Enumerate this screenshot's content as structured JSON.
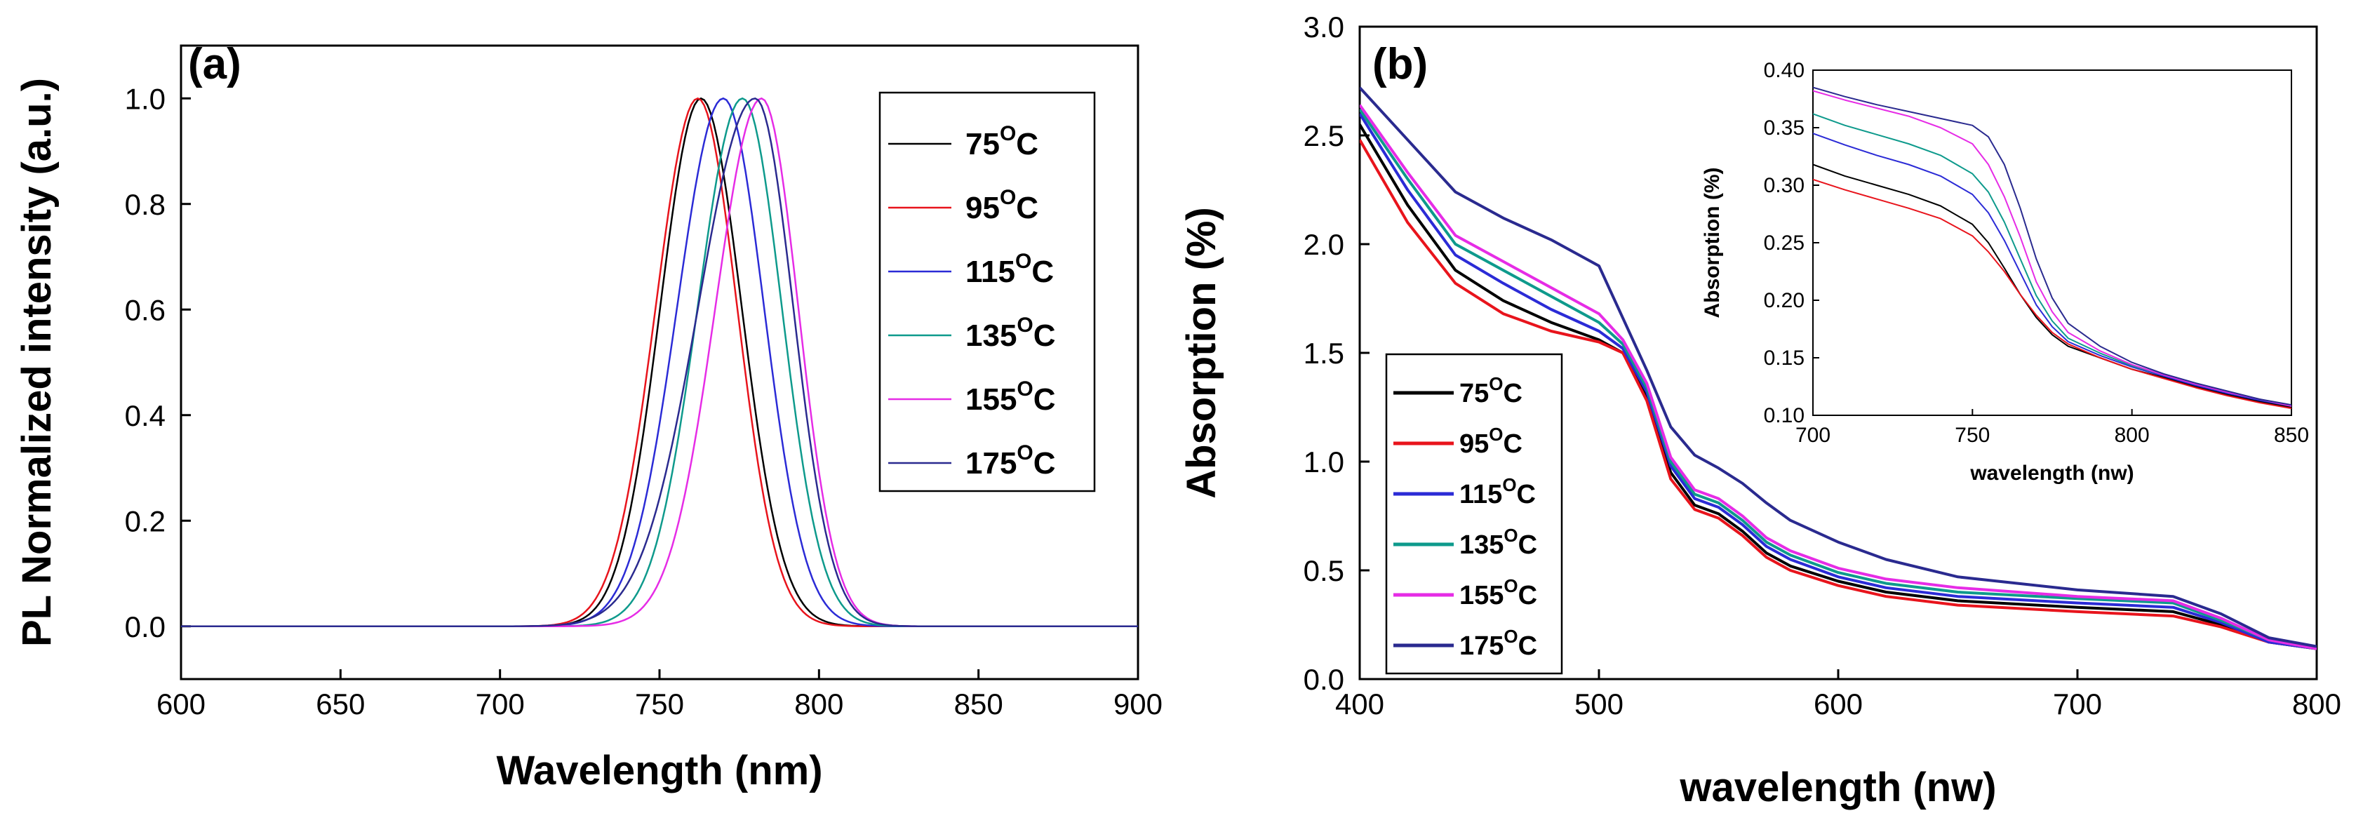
{
  "colors": {
    "75": "#000000",
    "95": "#e8141c",
    "115": "#2b2bd6",
    "135": "#0e9a8c",
    "155": "#e62ce6",
    "175": "#2a2a8f"
  },
  "chart_data": [
    {
      "type": "line",
      "panel_label": "(a)",
      "xlabel": "Wavelength (nm)",
      "ylabel": "PL Normalized intensity (a.u.)",
      "xlim": [
        600,
        900
      ],
      "ylim": [
        -0.1,
        1.1
      ],
      "xticks": [
        600,
        650,
        700,
        750,
        800,
        850,
        900
      ],
      "yticks": [
        0.0,
        0.2,
        0.4,
        0.6,
        0.8,
        1.0
      ],
      "tick_format": "0.0",
      "grid": false,
      "legend_placement": "top-right",
      "series": [
        {
          "name": "75",
          "unit": "C",
          "color_key": "75",
          "peak": 763,
          "fwhm_left": 30,
          "fwhm_right": 30
        },
        {
          "name": "95",
          "unit": "C",
          "color_key": "95",
          "peak": 762,
          "fwhm_left": 31,
          "fwhm_right": 29
        },
        {
          "name": "115",
          "unit": "C",
          "color_key": "115",
          "peak": 770,
          "fwhm_left": 34,
          "fwhm_right": 30
        },
        {
          "name": "135",
          "unit": "C",
          "color_key": "135",
          "peak": 776,
          "fwhm_left": 33,
          "fwhm_right": 29
        },
        {
          "name": "155",
          "unit": "C",
          "color_key": "155",
          "peak": 782,
          "fwhm_left": 34,
          "fwhm_right": 27
        },
        {
          "name": "175",
          "unit": "C",
          "color_key": "175",
          "peak": 780,
          "fwhm_left": 42,
          "fwhm_right": 28
        }
      ]
    },
    {
      "type": "line",
      "panel_label": "(b)",
      "xlabel": "wavelength (nw)",
      "ylabel": "Absorption (%)",
      "xlim": [
        400,
        800
      ],
      "ylim": [
        0.0,
        3.0
      ],
      "xticks": [
        400,
        500,
        600,
        700,
        800
      ],
      "yticks": [
        0.0,
        0.5,
        1.0,
        1.5,
        2.0,
        2.5,
        3.0
      ],
      "tick_format": "0.0",
      "grid": false,
      "legend_placement": "bottom-left",
      "x": [
        400,
        420,
        440,
        460,
        480,
        500,
        510,
        520,
        530,
        540,
        550,
        560,
        570,
        580,
        600,
        620,
        650,
        700,
        740,
        760,
        780,
        800
      ],
      "series": [
        {
          "name": "75",
          "unit": "C",
          "color_key": "75",
          "values": [
            2.55,
            2.18,
            1.88,
            1.74,
            1.64,
            1.56,
            1.5,
            1.3,
            0.95,
            0.8,
            0.76,
            0.68,
            0.58,
            0.52,
            0.45,
            0.4,
            0.36,
            0.33,
            0.31,
            0.25,
            0.17,
            0.14
          ]
        },
        {
          "name": "95",
          "unit": "C",
          "color_key": "95",
          "values": [
            2.48,
            2.1,
            1.82,
            1.68,
            1.6,
            1.55,
            1.5,
            1.28,
            0.92,
            0.78,
            0.74,
            0.66,
            0.56,
            0.5,
            0.43,
            0.38,
            0.34,
            0.31,
            0.29,
            0.24,
            0.17,
            0.14
          ]
        },
        {
          "name": "115",
          "unit": "C",
          "color_key": "115",
          "values": [
            2.6,
            2.25,
            1.95,
            1.82,
            1.7,
            1.6,
            1.52,
            1.32,
            0.98,
            0.83,
            0.79,
            0.71,
            0.61,
            0.55,
            0.47,
            0.42,
            0.38,
            0.35,
            0.33,
            0.26,
            0.17,
            0.14
          ]
        },
        {
          "name": "135",
          "unit": "C",
          "color_key": "135",
          "values": [
            2.62,
            2.3,
            2.0,
            1.88,
            1.76,
            1.64,
            1.54,
            1.34,
            1.0,
            0.85,
            0.81,
            0.73,
            0.63,
            0.57,
            0.49,
            0.44,
            0.4,
            0.37,
            0.35,
            0.27,
            0.18,
            0.14
          ]
        },
        {
          "name": "155",
          "unit": "C",
          "color_key": "155",
          "values": [
            2.64,
            2.33,
            2.04,
            1.92,
            1.8,
            1.68,
            1.56,
            1.36,
            1.02,
            0.87,
            0.83,
            0.75,
            0.65,
            0.59,
            0.51,
            0.46,
            0.42,
            0.38,
            0.36,
            0.28,
            0.18,
            0.14
          ]
        },
        {
          "name": "175",
          "unit": "C",
          "color_key": "175",
          "values": [
            2.72,
            2.48,
            2.24,
            2.12,
            2.02,
            1.9,
            1.66,
            1.42,
            1.16,
            1.03,
            0.97,
            0.9,
            0.81,
            0.73,
            0.63,
            0.55,
            0.47,
            0.41,
            0.38,
            0.3,
            0.19,
            0.15
          ]
        }
      ]
    },
    {
      "type": "line",
      "inset_of": "(b)",
      "xlabel": "wavelength (nw)",
      "ylabel": "Absorption (%)",
      "xlim": [
        700,
        850
      ],
      "ylim": [
        0.1,
        0.4
      ],
      "xticks": [
        700,
        750,
        800,
        850
      ],
      "yticks": [
        0.1,
        0.15,
        0.2,
        0.25,
        0.3,
        0.35,
        0.4
      ],
      "tick_format": "0.00",
      "grid": false,
      "x": [
        700,
        710,
        720,
        730,
        740,
        750,
        755,
        760,
        765,
        770,
        775,
        780,
        790,
        800,
        810,
        820,
        830,
        840,
        850
      ],
      "series": [
        {
          "name": "75",
          "color_key": "75",
          "values": [
            0.318,
            0.308,
            0.3,
            0.292,
            0.282,
            0.266,
            0.25,
            0.228,
            0.205,
            0.185,
            0.17,
            0.16,
            0.15,
            0.14,
            0.133,
            0.125,
            0.118,
            0.112,
            0.107
          ]
        },
        {
          "name": "95",
          "color_key": "95",
          "values": [
            0.305,
            0.296,
            0.288,
            0.28,
            0.271,
            0.256,
            0.242,
            0.225,
            0.205,
            0.187,
            0.172,
            0.162,
            0.15,
            0.14,
            0.132,
            0.124,
            0.117,
            0.111,
            0.106
          ]
        },
        {
          "name": "115",
          "color_key": "115",
          "values": [
            0.345,
            0.335,
            0.326,
            0.318,
            0.308,
            0.292,
            0.276,
            0.252,
            0.224,
            0.196,
            0.177,
            0.164,
            0.152,
            0.142,
            0.134,
            0.126,
            0.119,
            0.113,
            0.108
          ]
        },
        {
          "name": "135",
          "color_key": "135",
          "values": [
            0.362,
            0.352,
            0.344,
            0.336,
            0.326,
            0.31,
            0.294,
            0.268,
            0.236,
            0.204,
            0.182,
            0.167,
            0.154,
            0.143,
            0.135,
            0.127,
            0.12,
            0.114,
            0.108
          ]
        },
        {
          "name": "155",
          "color_key": "155",
          "values": [
            0.382,
            0.374,
            0.367,
            0.36,
            0.35,
            0.336,
            0.318,
            0.29,
            0.255,
            0.216,
            0.19,
            0.172,
            0.156,
            0.144,
            0.135,
            0.127,
            0.12,
            0.114,
            0.108
          ]
        },
        {
          "name": "175",
          "color_key": "175",
          "values": [
            0.385,
            0.377,
            0.37,
            0.364,
            0.358,
            0.352,
            0.342,
            0.318,
            0.28,
            0.236,
            0.202,
            0.18,
            0.16,
            0.146,
            0.136,
            0.128,
            0.121,
            0.114,
            0.109
          ]
        }
      ]
    }
  ]
}
